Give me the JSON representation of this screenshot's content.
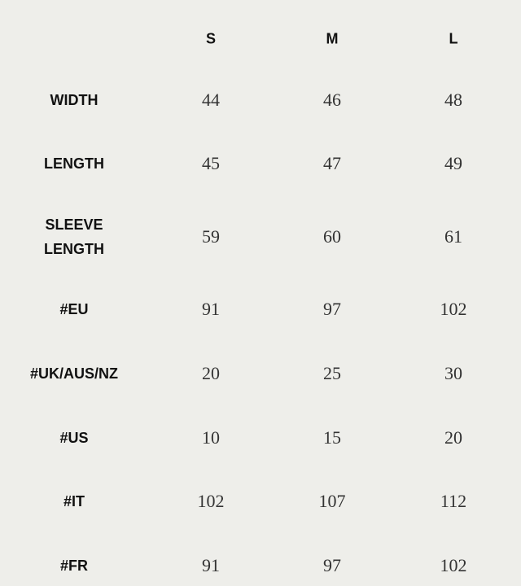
{
  "table": {
    "columns": [
      "S",
      "M",
      "L"
    ],
    "rows": [
      {
        "label": "WIDTH",
        "values": [
          "44",
          "46",
          "48"
        ]
      },
      {
        "label": "LENGTH",
        "values": [
          "45",
          "47",
          "49"
        ]
      },
      {
        "label": "SLEEVE\nLENGTH",
        "values": [
          "59",
          "60",
          "61"
        ]
      },
      {
        "label": "#EU",
        "values": [
          "91",
          "97",
          "102"
        ]
      },
      {
        "label": "#UK/AUS/NZ",
        "values": [
          "20",
          "25",
          "30"
        ]
      },
      {
        "label": "#US",
        "values": [
          "10",
          "15",
          "20"
        ]
      },
      {
        "label": "#IT",
        "values": [
          "102",
          "107",
          "112"
        ]
      },
      {
        "label": "#FR",
        "values": [
          "91",
          "97",
          "102"
        ]
      }
    ]
  }
}
